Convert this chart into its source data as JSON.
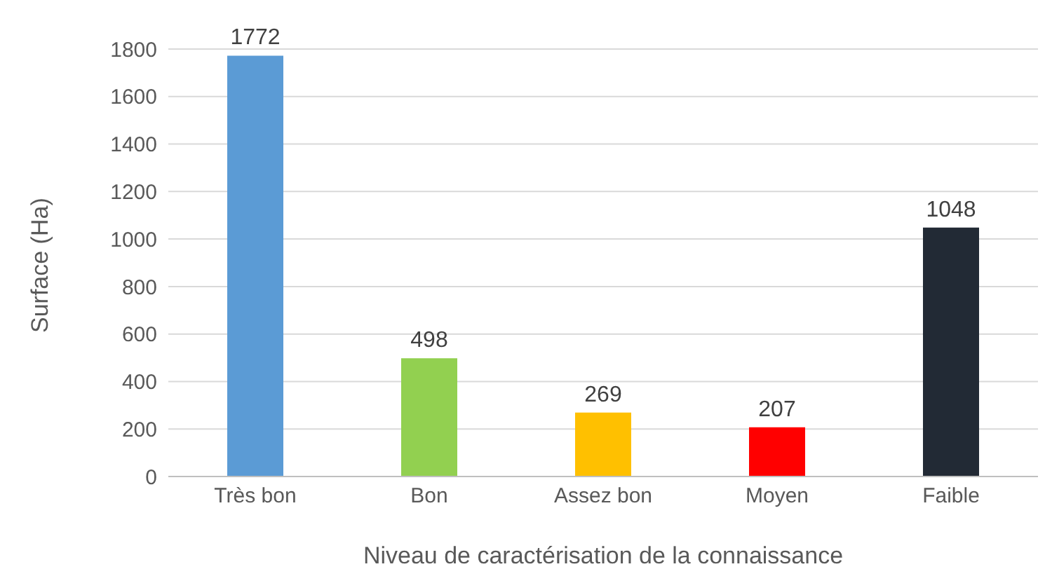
{
  "chart_data": {
    "type": "bar",
    "categories": [
      "Très bon",
      "Bon",
      "Assez bon",
      "Moyen",
      "Faible"
    ],
    "values": [
      1772,
      498,
      269,
      207,
      1048
    ],
    "colors": [
      "#5b9bd5",
      "#92d050",
      "#ffc000",
      "#ff0000",
      "#222a35"
    ],
    "xlabel": "Niveau de caractérisation de la connaissance",
    "ylabel": "Surface (Ha)",
    "ylim": [
      0,
      1800
    ],
    "yticks": [
      0,
      200,
      400,
      600,
      800,
      1000,
      1200,
      1400,
      1600,
      1800
    ],
    "grid": "y",
    "data_labels": true
  }
}
